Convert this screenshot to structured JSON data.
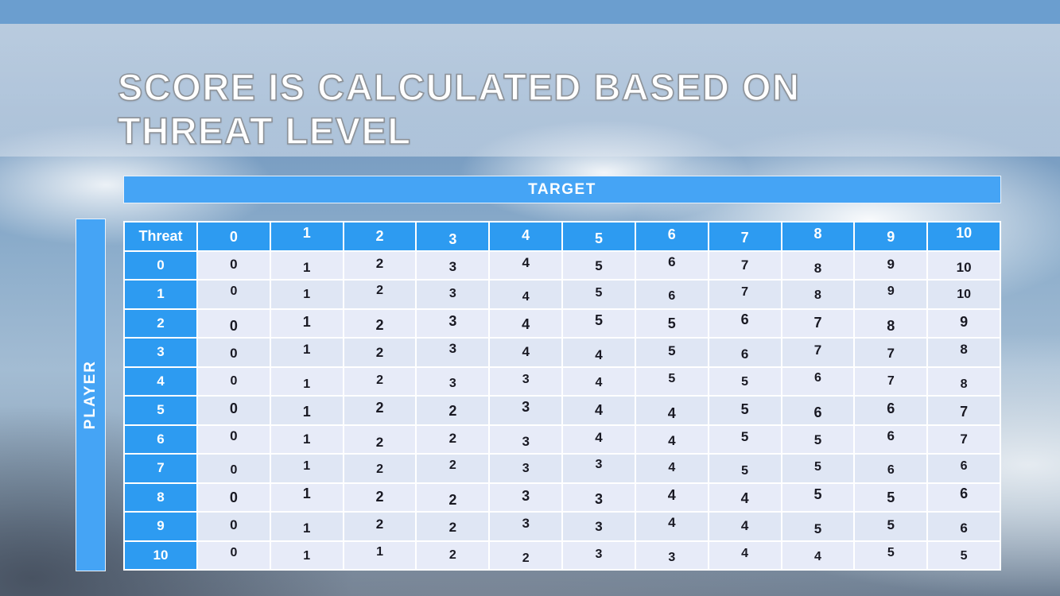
{
  "slide": {
    "title_line1": "SCORE IS CALCULATED BASED ON",
    "title_line2": "THREAT LEVEL"
  },
  "matrix": {
    "target_label": "TARGET",
    "player_label": "PLAYER",
    "corner_label": "Threat",
    "col_headers": [
      "0",
      "1",
      "2",
      "3",
      "4",
      "5",
      "6",
      "7",
      "8",
      "9",
      "10"
    ],
    "row_labels": [
      "0",
      "1",
      "2",
      "3",
      "4",
      "5",
      "6",
      "7",
      "8",
      "9",
      "10"
    ],
    "rows": [
      [
        0,
        1,
        2,
        3,
        4,
        5,
        6,
        7,
        8,
        9,
        10
      ],
      [
        0,
        1,
        2,
        3,
        4,
        5,
        6,
        7,
        8,
        9,
        10
      ],
      [
        0,
        1,
        2,
        3,
        4,
        5,
        5,
        6,
        7,
        8,
        9
      ],
      [
        0,
        1,
        2,
        3,
        4,
        4,
        5,
        6,
        7,
        7,
        8
      ],
      [
        0,
        1,
        2,
        3,
        3,
        4,
        5,
        5,
        6,
        7,
        8
      ],
      [
        0,
        1,
        2,
        2,
        3,
        4,
        4,
        5,
        6,
        6,
        7
      ],
      [
        0,
        1,
        2,
        2,
        3,
        4,
        4,
        5,
        5,
        6,
        7
      ],
      [
        0,
        1,
        2,
        2,
        3,
        3,
        4,
        5,
        5,
        6,
        6
      ],
      [
        0,
        1,
        2,
        2,
        3,
        3,
        4,
        4,
        5,
        5,
        6
      ],
      [
        0,
        1,
        2,
        2,
        3,
        3,
        4,
        4,
        5,
        5,
        6
      ],
      [
        0,
        1,
        1,
        2,
        2,
        3,
        3,
        4,
        4,
        5,
        5
      ]
    ]
  },
  "colors": {
    "accent_blue": "#2d9bf1",
    "bar_blue": "#45a4f5",
    "top_bar_blue": "#6b9ecf",
    "row_stripe_a": "#e7ebf8",
    "row_stripe_b": "#dfe6f4",
    "cell_text": "#191923"
  }
}
